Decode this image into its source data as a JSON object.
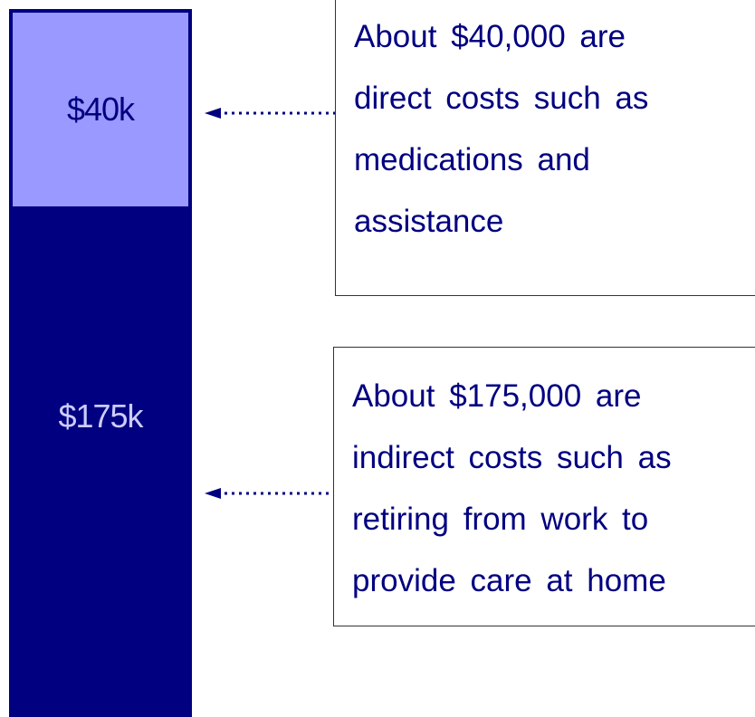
{
  "bar": {
    "segments": [
      {
        "label": "$40k"
      },
      {
        "label": "$175k"
      }
    ]
  },
  "annotations": [
    {
      "lines": [
        "About $40,000 are",
        "direct costs such as",
        "medications and",
        "assistance"
      ]
    },
    {
      "lines": [
        "About $175,000 are",
        "indirect costs such as",
        "retiring from work to",
        "provide care at home"
      ]
    }
  ]
}
